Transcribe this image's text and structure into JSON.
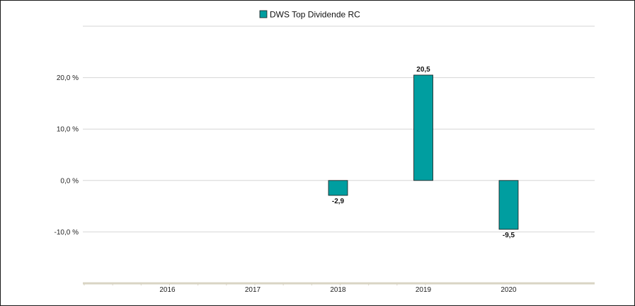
{
  "colors": {
    "bar": "#009ea0",
    "bar_stroke": "#1a1a1a",
    "grid": "#d6d6d6",
    "axis": "#d9d4c4"
  },
  "legend": {
    "label": "DWS Top Dividende  RC",
    "placement": "top-center"
  },
  "chart_data": {
    "type": "bar",
    "categories": [
      "2016",
      "2017",
      "2018",
      "2019",
      "2020"
    ],
    "series": [
      {
        "name": "DWS Top Dividende  RC",
        "values": [
          null,
          null,
          -2.9,
          20.5,
          -9.5
        ],
        "value_labels": [
          null,
          null,
          "-2,9",
          "20,5",
          "-9,5"
        ]
      }
    ],
    "y_ticks": [
      {
        "value": 20,
        "label": "20,0 %"
      },
      {
        "value": 10,
        "label": "10,0 %"
      },
      {
        "value": 0,
        "label": "0,0 %"
      },
      {
        "value": -10,
        "label": "-10,0 %"
      }
    ],
    "ylim": [
      -20,
      30
    ],
    "grid": true,
    "xlabel": "",
    "ylabel": ""
  }
}
